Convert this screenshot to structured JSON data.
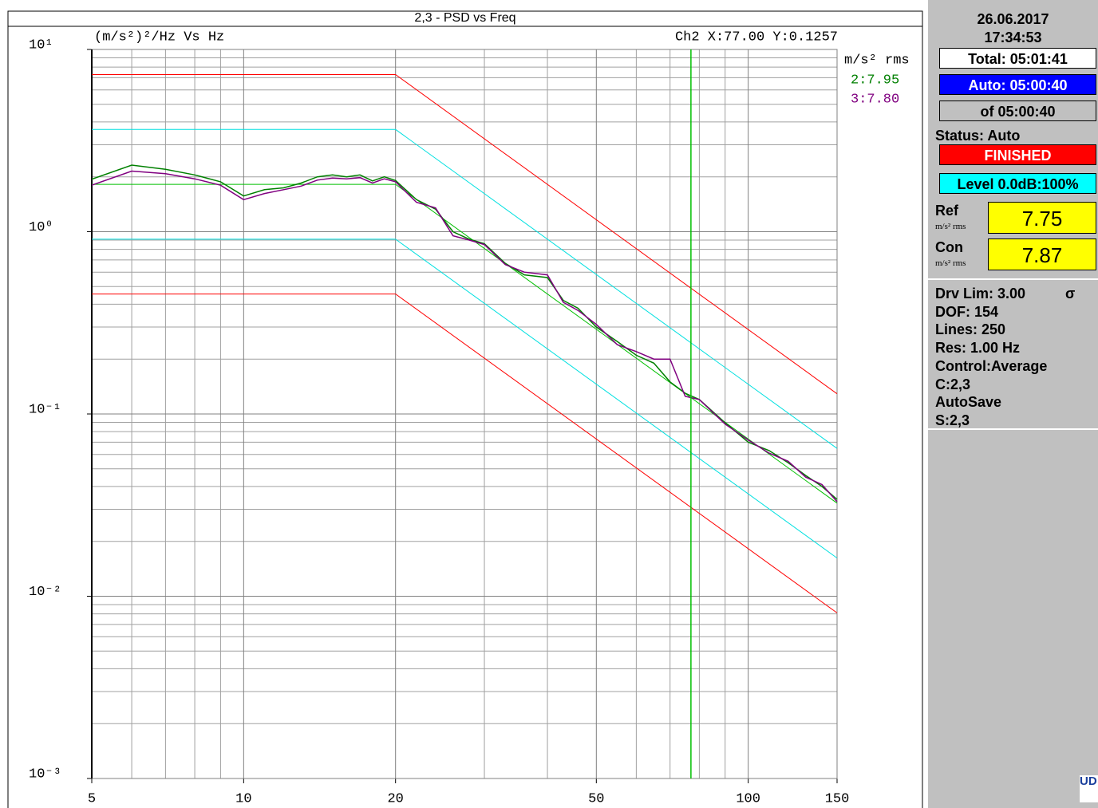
{
  "chart_data": {
    "type": "line",
    "title": "2,3 - PSD vs Freq",
    "y_label": "(m/s²)²/Hz Vs Hz",
    "cursor_label": "Ch2 X:77.00 Y:0.1257",
    "cursor_x": 77,
    "cursor_color": "#00c000",
    "units_label": "m/s² rms",
    "log_x": true,
    "log_y": true,
    "grid": true,
    "xlim": [
      5,
      150
    ],
    "xticks": [
      5,
      10,
      20,
      50,
      100,
      150
    ],
    "xminor": [
      6,
      7,
      8,
      9,
      30,
      40,
      60,
      70,
      80,
      90
    ],
    "ylim": [
      0.001,
      10
    ],
    "yticks": [
      {
        "value": 10,
        "label": "10¹"
      },
      {
        "value": 1,
        "label": "10⁰"
      },
      {
        "value": 0.1,
        "label": "10⁻¹"
      },
      {
        "value": 0.01,
        "label": "10⁻²"
      },
      {
        "value": 0.001,
        "label": "10⁻³"
      }
    ],
    "yminor": [
      0.002,
      0.003,
      0.004,
      0.005,
      0.006,
      0.007,
      0.008,
      0.009,
      0.02,
      0.03,
      0.04,
      0.05,
      0.06,
      0.07,
      0.08,
      0.09,
      0.2,
      0.3,
      0.4,
      0.5,
      0.6,
      0.7,
      0.8,
      0.9,
      2,
      3,
      4,
      5,
      6,
      7,
      8,
      9
    ],
    "profiles": [
      {
        "color": "#ff0000",
        "x": [
          5,
          20,
          150
        ],
        "values": [
          7.28,
          7.28,
          0.129
        ]
      },
      {
        "color": "#00e0e0",
        "x": [
          5,
          20,
          150
        ],
        "values": [
          3.64,
          3.64,
          0.0647
        ]
      },
      {
        "color": "#00c000",
        "x": [
          5,
          20,
          150
        ],
        "values": [
          1.82,
          1.82,
          0.0324
        ]
      },
      {
        "color": "#00e0e0",
        "x": [
          5,
          20,
          150
        ],
        "values": [
          0.91,
          0.91,
          0.0162
        ]
      },
      {
        "color": "#ff0000",
        "x": [
          5,
          20,
          150
        ],
        "values": [
          0.455,
          0.455,
          0.0081
        ]
      }
    ],
    "x": [
      5,
      6,
      7,
      8,
      9,
      10,
      11,
      12,
      13,
      14,
      15,
      16,
      17,
      18,
      19,
      20,
      22,
      24,
      26,
      28,
      30,
      33,
      36,
      40,
      43,
      46,
      50,
      55,
      60,
      65,
      70,
      75,
      80,
      90,
      100,
      110,
      120,
      130,
      140,
      150
    ],
    "series": [
      {
        "name": "2:7.95",
        "color": "#008000",
        "values": [
          1.94,
          2.32,
          2.2,
          2.05,
          1.88,
          1.57,
          1.7,
          1.74,
          1.85,
          2.0,
          2.05,
          2.0,
          2.05,
          1.9,
          2.0,
          1.91,
          1.5,
          1.33,
          1.0,
          0.91,
          0.86,
          0.67,
          0.58,
          0.56,
          0.42,
          0.38,
          0.3,
          0.25,
          0.21,
          0.19,
          0.15,
          0.13,
          0.12,
          0.0895,
          0.07,
          0.063,
          0.054,
          0.046,
          0.04,
          0.034
        ]
      },
      {
        "name": "3:7.80",
        "color": "#800080",
        "values": [
          1.8,
          2.15,
          2.08,
          1.95,
          1.8,
          1.5,
          1.62,
          1.7,
          1.78,
          1.92,
          1.97,
          1.95,
          1.98,
          1.85,
          1.95,
          1.88,
          1.45,
          1.35,
          0.95,
          0.9,
          0.85,
          0.66,
          0.6,
          0.58,
          0.41,
          0.37,
          0.31,
          0.24,
          0.22,
          0.2,
          0.2,
          0.125,
          0.12,
          0.088,
          0.072,
          0.061,
          0.055,
          0.045,
          0.041,
          0.033
        ]
      }
    ]
  },
  "panel": {
    "date": "26.06.2017",
    "time": "17:34:53",
    "total": "Total: 05:01:41",
    "auto": "Auto: 05:00:40",
    "of": "of 05:00:40",
    "status": "Status: Auto",
    "state": "FINISHED",
    "level": "Level 0.0dB:100%",
    "ref_label": "Ref",
    "ref_unit": "m/s² rms",
    "ref_value": "7.75",
    "con_label": "Con",
    "con_unit": "m/s² rms",
    "con_value": "7.87",
    "info": [
      "Drv Lim: 3.00",
      "DOF: 154",
      "Lines: 250",
      "Res: 1.00 Hz",
      "Control:Average",
      "C:2,3",
      "AutoSave",
      "S:2,3"
    ],
    "sigma": "σ",
    "logo": "UD"
  }
}
